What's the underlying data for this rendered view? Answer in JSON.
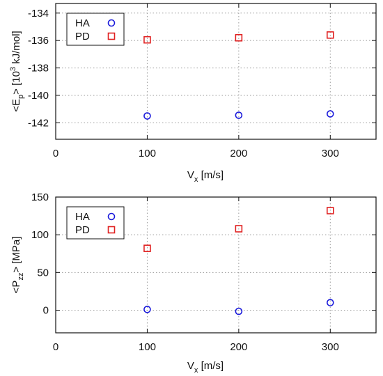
{
  "chart_data": [
    {
      "type": "scatter",
      "x_ticks": [
        "0",
        "100",
        "200",
        "300"
      ],
      "y_ticks": [
        "-134",
        "-136",
        "-138",
        "-140",
        "-142"
      ],
      "xlim": [
        0,
        350
      ],
      "ylim": [
        -143.2,
        -133.3
      ],
      "ylabel": {
        "main": "<E",
        "sub": "p",
        "rest": ">  [10",
        "sup": "3",
        "unit": " kJ/mol]"
      },
      "xlabel": {
        "main": "V",
        "sub": "x",
        "rest": "  [m/s]"
      },
      "grid": true,
      "legend_position": "top-left",
      "series": [
        {
          "name": "HA",
          "marker": "circle",
          "color": "#1a1adb",
          "points": [
            [
              100,
              -141.5
            ],
            [
              200,
              -141.45
            ],
            [
              300,
              -141.35
            ]
          ]
        },
        {
          "name": "PD",
          "marker": "square",
          "color": "#e02020",
          "points": [
            [
              100,
              -135.95
            ],
            [
              200,
              -135.8
            ],
            [
              300,
              -135.6
            ]
          ]
        }
      ]
    },
    {
      "type": "scatter",
      "x_ticks": [
        "0",
        "100",
        "200",
        "300"
      ],
      "y_ticks": [
        "150",
        "100",
        "50",
        "0"
      ],
      "xlim": [
        0,
        350
      ],
      "ylim": [
        -30,
        150
      ],
      "ylabel": {
        "main": "<P",
        "sub": "zz",
        "rest": ">  [MPa]"
      },
      "xlabel": {
        "main": "V",
        "sub": "x",
        "rest": "  [m/s]"
      },
      "grid": true,
      "legend_position": "top-left",
      "series": [
        {
          "name": "HA",
          "marker": "circle",
          "color": "#1a1adb",
          "points": [
            [
              100,
              1
            ],
            [
              200,
              -1.5
            ],
            [
              300,
              10
            ]
          ]
        },
        {
          "name": "PD",
          "marker": "square",
          "color": "#e02020",
          "points": [
            [
              100,
              82
            ],
            [
              200,
              108
            ],
            [
              300,
              132
            ]
          ]
        }
      ]
    }
  ]
}
